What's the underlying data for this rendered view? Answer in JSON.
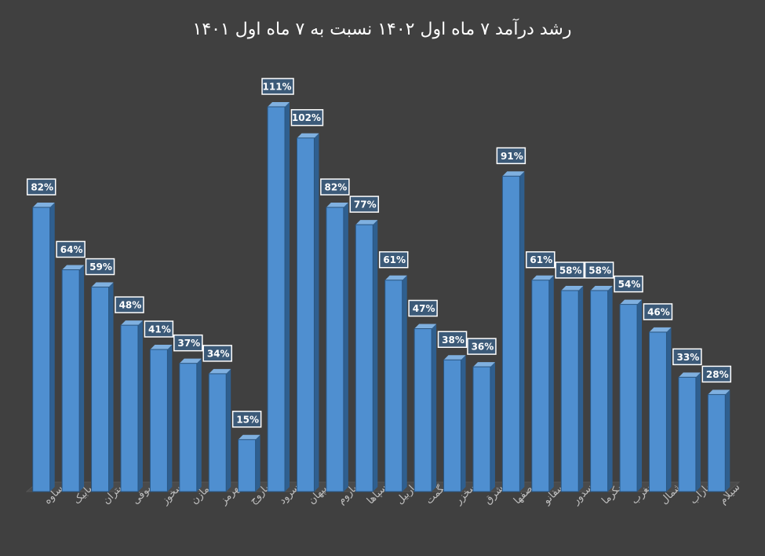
{
  "chart_data": {
    "type": "bar",
    "title": "رشد درآمد ۷ ماه اول ۱۴۰۲ نسبت به ۷ ماه اول ۱۴۰۱",
    "categories": [
      "ساوه",
      "سابیک",
      "ستران",
      "سصوفی",
      "سخوز",
      "سمازن",
      "سهرمز",
      "ساروج",
      "سرود",
      "سپهان",
      "ساروم",
      "سپاها",
      "ساربیل",
      "سهگمت",
      "سخزر",
      "سشرق",
      "سصفها",
      "سفانو",
      "سدور",
      "سکرما",
      "سغرب",
      "سشمال",
      "ساراب",
      "سیلام"
    ],
    "values": [
      82,
      64,
      59,
      48,
      41,
      37,
      34,
      15,
      111,
      102,
      82,
      77,
      61,
      47,
      38,
      36,
      91,
      61,
      58,
      58,
      54,
      46,
      33,
      28
    ],
    "value_labels": [
      "82%",
      "64%",
      "59%",
      "48%",
      "41%",
      "37%",
      "34%",
      "15%",
      "111%",
      "102%",
      "82%",
      "77%",
      "61%",
      "47%",
      "38%",
      "36%",
      "91%",
      "61%",
      "58%",
      "58%",
      "54%",
      "46%",
      "33%",
      "28%"
    ],
    "color": "#4f8fd0"
  }
}
